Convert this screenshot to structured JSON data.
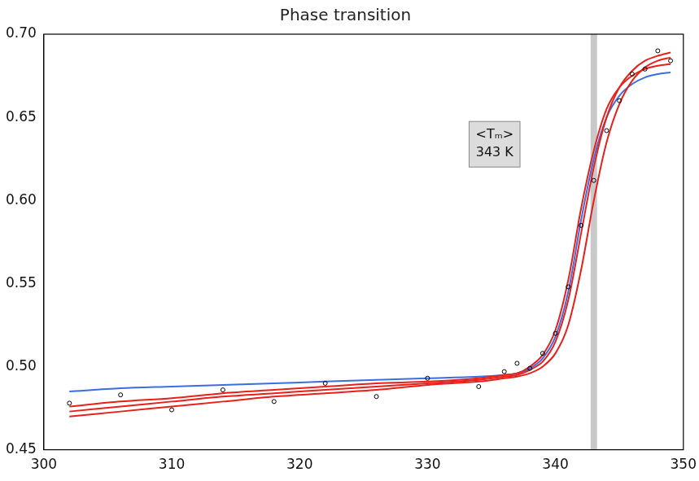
{
  "chart_data": {
    "type": "line",
    "title": "Phase transition",
    "x": [
      302,
      306,
      310,
      314,
      318,
      322,
      326,
      330,
      334,
      336,
      337,
      338,
      339,
      340,
      341,
      342,
      343,
      344,
      345,
      346,
      347,
      348,
      349
    ],
    "series": [
      {
        "type": "scatter",
        "color": "#000000",
        "marker": "circle",
        "line_style": "none",
        "values": [
          0.478,
          0.483,
          0.474,
          0.486,
          0.479,
          0.49,
          0.482,
          0.493,
          0.488,
          0.497,
          0.502,
          0.499,
          0.508,
          0.52,
          0.548,
          0.585,
          0.612,
          0.642,
          0.66,
          0.676,
          0.679,
          0.69,
          0.684
        ]
      },
      {
        "type": "line",
        "color": "#e8201a",
        "line_style": "solid",
        "values": [
          0.473,
          0.476,
          0.479,
          0.482,
          0.484,
          0.486,
          0.488,
          0.49,
          0.492,
          0.494,
          0.495,
          0.498,
          0.503,
          0.515,
          0.54,
          0.58,
          0.62,
          0.65,
          0.668,
          0.678,
          0.684,
          0.687,
          0.689
        ]
      },
      {
        "type": "line",
        "color": "#e8201a",
        "line_style": "solid",
        "values": [
          0.47,
          0.473,
          0.476,
          0.479,
          0.482,
          0.484,
          0.486,
          0.489,
          0.491,
          0.493,
          0.494,
          0.496,
          0.5,
          0.508,
          0.525,
          0.558,
          0.6,
          0.635,
          0.658,
          0.672,
          0.68,
          0.684,
          0.686
        ]
      },
      {
        "type": "line",
        "color": "#e8201a",
        "line_style": "solid",
        "values": [
          0.476,
          0.479,
          0.481,
          0.484,
          0.486,
          0.488,
          0.49,
          0.491,
          0.493,
          0.495,
          0.496,
          0.5,
          0.507,
          0.522,
          0.552,
          0.595,
          0.63,
          0.655,
          0.668,
          0.675,
          0.679,
          0.681,
          0.682
        ]
      },
      {
        "type": "line",
        "color": "#3a6fe0",
        "line_style": "solid",
        "values": [
          0.485,
          0.487,
          0.488,
          0.489,
          0.49,
          0.491,
          0.492,
          0.493,
          0.494,
          0.495,
          0.496,
          0.499,
          0.505,
          0.518,
          0.545,
          0.588,
          0.625,
          0.65,
          0.663,
          0.67,
          0.674,
          0.676,
          0.677
        ]
      }
    ],
    "xlim": [
      300,
      350
    ],
    "xticks": [
      300,
      310,
      320,
      330,
      340,
      350
    ],
    "ylim": [
      0.45,
      0.7
    ],
    "yticks": [
      0.45,
      {
        "value": 0.5,
        "label": "0.50"
      },
      0.55,
      {
        "value": 0.6,
        "label": "0.60"
      },
      0.65,
      {
        "value": 0.7,
        "label": "0.70"
      }
    ],
    "highlight_x": 343,
    "annotation": [
      "<Tₘ>",
      "343 K"
    ],
    "grid": false
  }
}
